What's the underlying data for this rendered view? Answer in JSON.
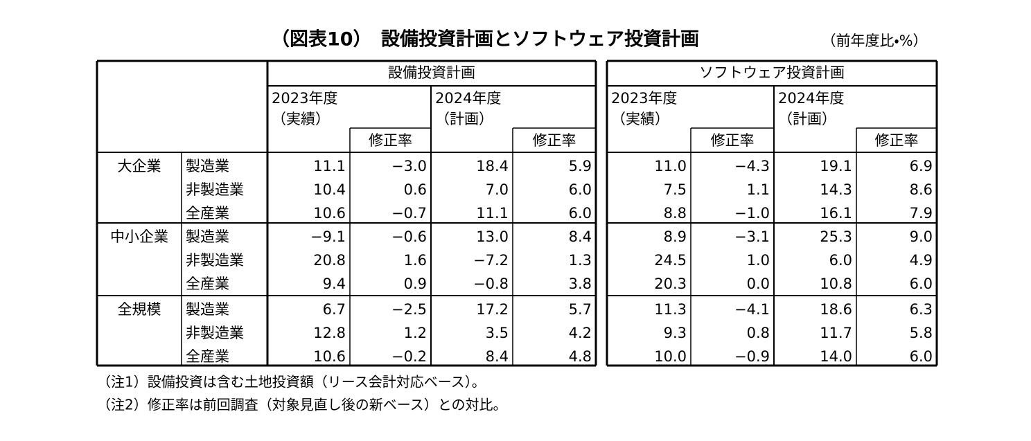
{
  "title": "（図表10）　設備投資計画とソフトウェア投資計画",
  "unit": "（前年度比・%）",
  "table": {
    "groups": [
      "設備投資計画",
      "ソフトウェア投資計画"
    ],
    "year_headers": [
      {
        "year": "2023年度",
        "kind": "（実績）"
      },
      {
        "year": "2024年度",
        "kind": "（計画）"
      }
    ],
    "revision_label": "修正率",
    "sections": [
      {
        "size": "大企業",
        "rows": [
          {
            "industry": "製造業",
            "values": [
              "11.1",
              "−3.0",
              "18.4",
              "5.9",
              "11.0",
              "−4.3",
              "19.1",
              "6.9"
            ]
          },
          {
            "industry": "非製造業",
            "values": [
              "10.4",
              "0.6",
              "7.0",
              "6.0",
              "7.5",
              "1.1",
              "14.3",
              "8.6"
            ]
          },
          {
            "industry": "全産業",
            "values": [
              "10.6",
              "−0.7",
              "11.1",
              "6.0",
              "8.8",
              "−1.0",
              "16.1",
              "7.9"
            ]
          }
        ]
      },
      {
        "size": "中小企業",
        "rows": [
          {
            "industry": "製造業",
            "values": [
              "−9.1",
              "−0.6",
              "13.0",
              "8.4",
              "8.9",
              "−3.1",
              "25.3",
              "9.0"
            ]
          },
          {
            "industry": "非製造業",
            "values": [
              "20.8",
              "1.6",
              "−7.2",
              "1.3",
              "24.5",
              "1.0",
              "6.0",
              "4.9"
            ]
          },
          {
            "industry": "全産業",
            "values": [
              "9.4",
              "0.9",
              "−0.8",
              "3.8",
              "20.3",
              "0.0",
              "10.8",
              "6.0"
            ]
          }
        ]
      },
      {
        "size": "全規模",
        "rows": [
          {
            "industry": "製造業",
            "values": [
              "6.7",
              "−2.5",
              "17.2",
              "5.7",
              "11.3",
              "−4.1",
              "18.6",
              "6.3"
            ]
          },
          {
            "industry": "非製造業",
            "values": [
              "12.8",
              "1.2",
              "3.5",
              "4.2",
              "9.3",
              "0.8",
              "11.7",
              "5.8"
            ]
          },
          {
            "industry": "全産業",
            "values": [
              "10.6",
              "−0.2",
              "8.4",
              "4.8",
              "10.0",
              "−0.9",
              "14.0",
              "6.0"
            ]
          }
        ]
      }
    ]
  },
  "notes": [
    "（注1）設備投資は含む土地投資額（リース会計対応ベース）。",
    "（注2）修正率は前回調査（対象見直し後の新ベース）との対比。"
  ]
}
